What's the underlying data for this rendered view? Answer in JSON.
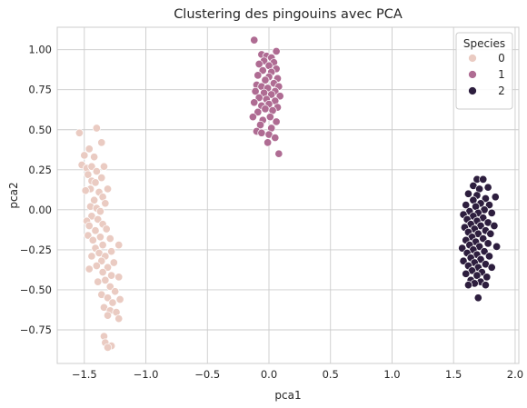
{
  "chart_data": {
    "type": "scatter",
    "title": "Clustering des pingouins avec PCA",
    "xlabel": "pca1",
    "ylabel": "pca2",
    "xlim": [
      -1.72,
      2.03
    ],
    "ylim": [
      -0.96,
      1.14
    ],
    "xticks": [
      -1.5,
      -1.0,
      -0.5,
      0.0,
      0.5,
      1.0,
      1.5,
      2.0
    ],
    "xtick_labels": [
      "−1.5",
      "−1.0",
      "−0.5",
      "0.0",
      "0.5",
      "1.0",
      "1.5",
      "2.0"
    ],
    "yticks": [
      -0.75,
      -0.5,
      -0.25,
      0.0,
      0.25,
      0.5,
      0.75,
      1.0
    ],
    "ytick_labels": [
      "−0.75",
      "−0.50",
      "−0.25",
      "0.00",
      "0.25",
      "0.50",
      "0.75",
      "1.00"
    ],
    "grid": true,
    "legend": {
      "title": "Species",
      "position": "top-right"
    },
    "series": [
      {
        "name": "0",
        "color": "#eacbc2",
        "points": [
          [
            -1.54,
            0.48
          ],
          [
            -1.4,
            0.51
          ],
          [
            -1.36,
            0.42
          ],
          [
            -1.46,
            0.38
          ],
          [
            -1.5,
            0.34
          ],
          [
            -1.42,
            0.33
          ],
          [
            -1.52,
            0.28
          ],
          [
            -1.48,
            0.26
          ],
          [
            -1.44,
            0.27
          ],
          [
            -1.4,
            0.24
          ],
          [
            -1.47,
            0.22
          ],
          [
            -1.44,
            0.18
          ],
          [
            -1.41,
            0.17
          ],
          [
            -1.45,
            0.13
          ],
          [
            -1.49,
            0.12
          ],
          [
            -1.38,
            0.11
          ],
          [
            -1.34,
            0.27
          ],
          [
            -1.36,
            0.2
          ],
          [
            -1.35,
            0.08
          ],
          [
            -1.42,
            0.06
          ],
          [
            -1.45,
            0.02
          ],
          [
            -1.4,
            0.01
          ],
          [
            -1.31,
            0.13
          ],
          [
            -1.33,
            0.04
          ],
          [
            -1.37,
            -0.01
          ],
          [
            -1.44,
            -0.04
          ],
          [
            -1.48,
            -0.07
          ],
          [
            -1.39,
            -0.06
          ],
          [
            -1.35,
            -0.09
          ],
          [
            -1.46,
            -0.1
          ],
          [
            -1.41,
            -0.13
          ],
          [
            -1.47,
            -0.16
          ],
          [
            -1.37,
            -0.17
          ],
          [
            -1.43,
            -0.19
          ],
          [
            -1.32,
            -0.12
          ],
          [
            -1.29,
            -0.18
          ],
          [
            -1.35,
            -0.22
          ],
          [
            -1.41,
            -0.24
          ],
          [
            -1.38,
            -0.27
          ],
          [
            -1.44,
            -0.29
          ],
          [
            -1.33,
            -0.29
          ],
          [
            -1.28,
            -0.26
          ],
          [
            -1.22,
            -0.22
          ],
          [
            -1.26,
            -0.33
          ],
          [
            -1.36,
            -0.32
          ],
          [
            -1.4,
            -0.35
          ],
          [
            -1.31,
            -0.36
          ],
          [
            -1.46,
            -0.37
          ],
          [
            -1.35,
            -0.39
          ],
          [
            -1.28,
            -0.41
          ],
          [
            -1.22,
            -0.42
          ],
          [
            -1.33,
            -0.44
          ],
          [
            -1.39,
            -0.45
          ],
          [
            -1.29,
            -0.48
          ],
          [
            -1.25,
            -0.51
          ],
          [
            -1.36,
            -0.53
          ],
          [
            -1.31,
            -0.55
          ],
          [
            -1.21,
            -0.56
          ],
          [
            -1.27,
            -0.58
          ],
          [
            -1.34,
            -0.61
          ],
          [
            -1.29,
            -0.63
          ],
          [
            -1.24,
            -0.64
          ],
          [
            -1.31,
            -0.66
          ],
          [
            -1.22,
            -0.68
          ],
          [
            -1.34,
            -0.79
          ],
          [
            -1.33,
            -0.83
          ],
          [
            -1.28,
            -0.85
          ],
          [
            -1.31,
            -0.86
          ]
        ]
      },
      {
        "name": "1",
        "color": "#af6c93",
        "points": [
          [
            -0.12,
            1.06
          ],
          [
            0.06,
            0.99
          ],
          [
            -0.06,
            0.97
          ],
          [
            -0.02,
            0.96
          ],
          [
            0.02,
            0.95
          ],
          [
            -0.04,
            0.93
          ],
          [
            0.04,
            0.92
          ],
          [
            -0.08,
            0.91
          ],
          [
            0.0,
            0.9
          ],
          [
            0.06,
            0.88
          ],
          [
            -0.05,
            0.87
          ],
          [
            0.02,
            0.86
          ],
          [
            -0.09,
            0.84
          ],
          [
            0.0,
            0.83
          ],
          [
            0.07,
            0.82
          ],
          [
            -0.03,
            0.81
          ],
          [
            0.04,
            0.79
          ],
          [
            -0.1,
            0.78
          ],
          [
            -0.06,
            0.77
          ],
          [
            0.08,
            0.77
          ],
          [
            -0.01,
            0.76
          ],
          [
            0.05,
            0.74
          ],
          [
            -0.11,
            0.74
          ],
          [
            -0.04,
            0.73
          ],
          [
            0.02,
            0.72
          ],
          [
            0.09,
            0.71
          ],
          [
            -0.08,
            0.7
          ],
          [
            -0.02,
            0.69
          ],
          [
            0.05,
            0.68
          ],
          [
            -0.12,
            0.67
          ],
          [
            0.0,
            0.66
          ],
          [
            -0.06,
            0.65
          ],
          [
            0.07,
            0.64
          ],
          [
            -0.03,
            0.63
          ],
          [
            0.03,
            0.62
          ],
          [
            -0.09,
            0.61
          ],
          [
            -0.13,
            0.58
          ],
          [
            0.01,
            0.58
          ],
          [
            -0.05,
            0.56
          ],
          [
            0.06,
            0.55
          ],
          [
            -0.07,
            0.53
          ],
          [
            0.02,
            0.51
          ],
          [
            -0.1,
            0.49
          ],
          [
            -0.06,
            0.48
          ],
          [
            0.0,
            0.47
          ],
          [
            0.05,
            0.45
          ],
          [
            -0.01,
            0.42
          ],
          [
            0.08,
            0.35
          ]
        ]
      },
      {
        "name": "2",
        "color": "#2d1e3e",
        "points": [
          [
            1.69,
            0.19
          ],
          [
            1.74,
            0.19
          ],
          [
            1.66,
            0.15
          ],
          [
            1.78,
            0.14
          ],
          [
            1.71,
            0.13
          ],
          [
            1.62,
            0.1
          ],
          [
            1.69,
            0.09
          ],
          [
            1.84,
            0.08
          ],
          [
            1.76,
            0.07
          ],
          [
            1.66,
            0.06
          ],
          [
            1.72,
            0.04
          ],
          [
            1.6,
            0.03
          ],
          [
            1.79,
            0.03
          ],
          [
            1.68,
            0.02
          ],
          [
            1.75,
            0.0
          ],
          [
            1.63,
            -0.01
          ],
          [
            1.7,
            -0.02
          ],
          [
            1.81,
            -0.02
          ],
          [
            1.58,
            -0.03
          ],
          [
            1.66,
            -0.04
          ],
          [
            1.74,
            -0.05
          ],
          [
            1.61,
            -0.06
          ],
          [
            1.69,
            -0.07
          ],
          [
            1.78,
            -0.08
          ],
          [
            1.64,
            -0.09
          ],
          [
            1.72,
            -0.1
          ],
          [
            1.83,
            -0.1
          ],
          [
            1.59,
            -0.11
          ],
          [
            1.67,
            -0.12
          ],
          [
            1.76,
            -0.13
          ],
          [
            1.62,
            -0.14
          ],
          [
            1.7,
            -0.15
          ],
          [
            1.8,
            -0.15
          ],
          [
            1.65,
            -0.17
          ],
          [
            1.74,
            -0.18
          ],
          [
            1.6,
            -0.19
          ],
          [
            1.68,
            -0.2
          ],
          [
            1.78,
            -0.21
          ],
          [
            1.63,
            -0.22
          ],
          [
            1.71,
            -0.23
          ],
          [
            1.57,
            -0.24
          ],
          [
            1.66,
            -0.25
          ],
          [
            1.75,
            -0.26
          ],
          [
            1.85,
            -0.23
          ],
          [
            1.61,
            -0.27
          ],
          [
            1.69,
            -0.28
          ],
          [
            1.79,
            -0.29
          ],
          [
            1.64,
            -0.3
          ],
          [
            1.72,
            -0.31
          ],
          [
            1.58,
            -0.32
          ],
          [
            1.67,
            -0.33
          ],
          [
            1.76,
            -0.34
          ],
          [
            1.62,
            -0.35
          ],
          [
            1.7,
            -0.36
          ],
          [
            1.81,
            -0.36
          ],
          [
            1.65,
            -0.38
          ],
          [
            1.73,
            -0.39
          ],
          [
            1.6,
            -0.4
          ],
          [
            1.69,
            -0.41
          ],
          [
            1.77,
            -0.42
          ],
          [
            1.64,
            -0.44
          ],
          [
            1.72,
            -0.45
          ],
          [
            1.67,
            -0.46
          ],
          [
            1.62,
            -0.47
          ],
          [
            1.76,
            -0.47
          ],
          [
            1.7,
            -0.55
          ]
        ]
      }
    ]
  }
}
